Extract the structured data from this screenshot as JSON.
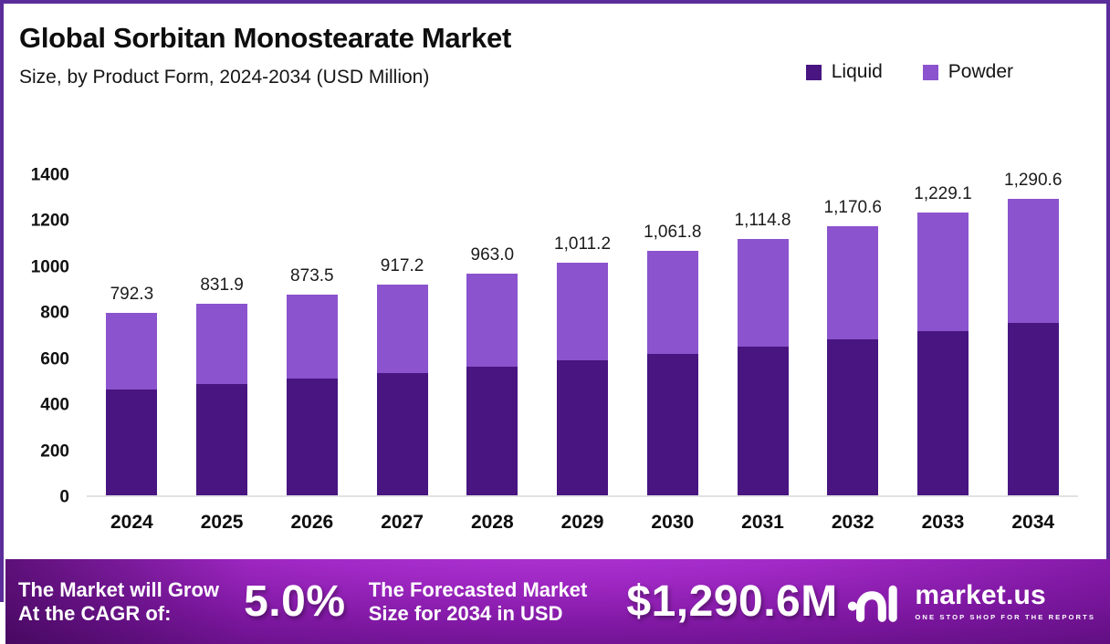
{
  "header": {
    "title": "Global Sorbitan Monostearate Market",
    "subtitle": "Size, by Product Form, 2024-2034 (USD Million)"
  },
  "colors": {
    "liquid": "#481581",
    "powder": "#8b53cd",
    "page_border": "#5b2d9b",
    "axis_line": "#e2e2e2",
    "banner_gradient_start": "#b63cda",
    "banner_gradient_end": "#540b74",
    "text": "#111111",
    "banner_text": "#ffffff"
  },
  "chart_data": {
    "type": "bar",
    "stacked": true,
    "title": "Global Sorbitan Monostearate Market Size, by Product Form, 2024-2034 (USD Million)",
    "categories": [
      "2024",
      "2025",
      "2026",
      "2027",
      "2028",
      "2029",
      "2030",
      "2031",
      "2032",
      "2033",
      "2034"
    ],
    "series": [
      {
        "name": "Liquid",
        "color": "#481581",
        "values": [
          459.5,
          482.5,
          506.6,
          532.0,
          558.5,
          586.5,
          615.8,
          646.6,
          678.9,
          712.9,
          748.5
        ]
      },
      {
        "name": "Powder",
        "color": "#8b53cd",
        "values": [
          332.8,
          349.4,
          366.9,
          385.2,
          404.5,
          424.7,
          446.0,
          468.2,
          491.7,
          516.2,
          542.1
        ]
      }
    ],
    "totals": [
      792.3,
      831.9,
      873.5,
      917.2,
      963.0,
      1011.2,
      1061.8,
      1114.8,
      1170.6,
      1229.1,
      1290.6
    ],
    "total_labels": [
      "792.3",
      "831.9",
      "873.5",
      "917.2",
      "963.0",
      "1,011.2",
      "1,061.8",
      "1,114.8",
      "1,170.6",
      "1,229.1",
      "1,290.6"
    ],
    "xlabel": "",
    "ylabel": "",
    "y_ticks": [
      0,
      200,
      400,
      600,
      800,
      1000,
      1200,
      1400
    ],
    "ylim": [
      0,
      1400
    ],
    "grid": false,
    "legend_position": "top-right"
  },
  "banner": {
    "cagr_label_line1": "The Market will Grow",
    "cagr_label_line2": "At the CAGR of:",
    "cagr_value": "5.0%",
    "forecast_label_line1": "The Forecasted Market",
    "forecast_label_line2": "Size for 2034 in USD",
    "forecast_value": "$1,290.6M",
    "brand": "market.us",
    "brand_tagline": "ONE STOP SHOP FOR THE REPORTS"
  }
}
